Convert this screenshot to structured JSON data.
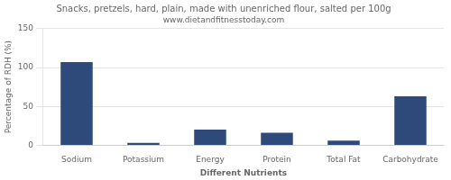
{
  "chart_data": {
    "type": "bar",
    "title": "Snacks, pretzels, hard, plain, made with unenriched flour, salted per 100g",
    "subtitle": "www.dietandfitnesstoday.com",
    "xlabel": "Different Nutrients",
    "ylabel": "Percentage of RDH (%)",
    "categories": [
      "Sodium",
      "Potassium",
      "Energy",
      "Protein",
      "Total Fat",
      "Carbohydrate"
    ],
    "values": [
      107,
      3,
      20,
      16,
      6,
      63
    ],
    "color": "#2e4a7a",
    "ylim": [
      0,
      150
    ],
    "yticks": [
      0,
      50,
      100,
      150
    ],
    "grid": true
  }
}
